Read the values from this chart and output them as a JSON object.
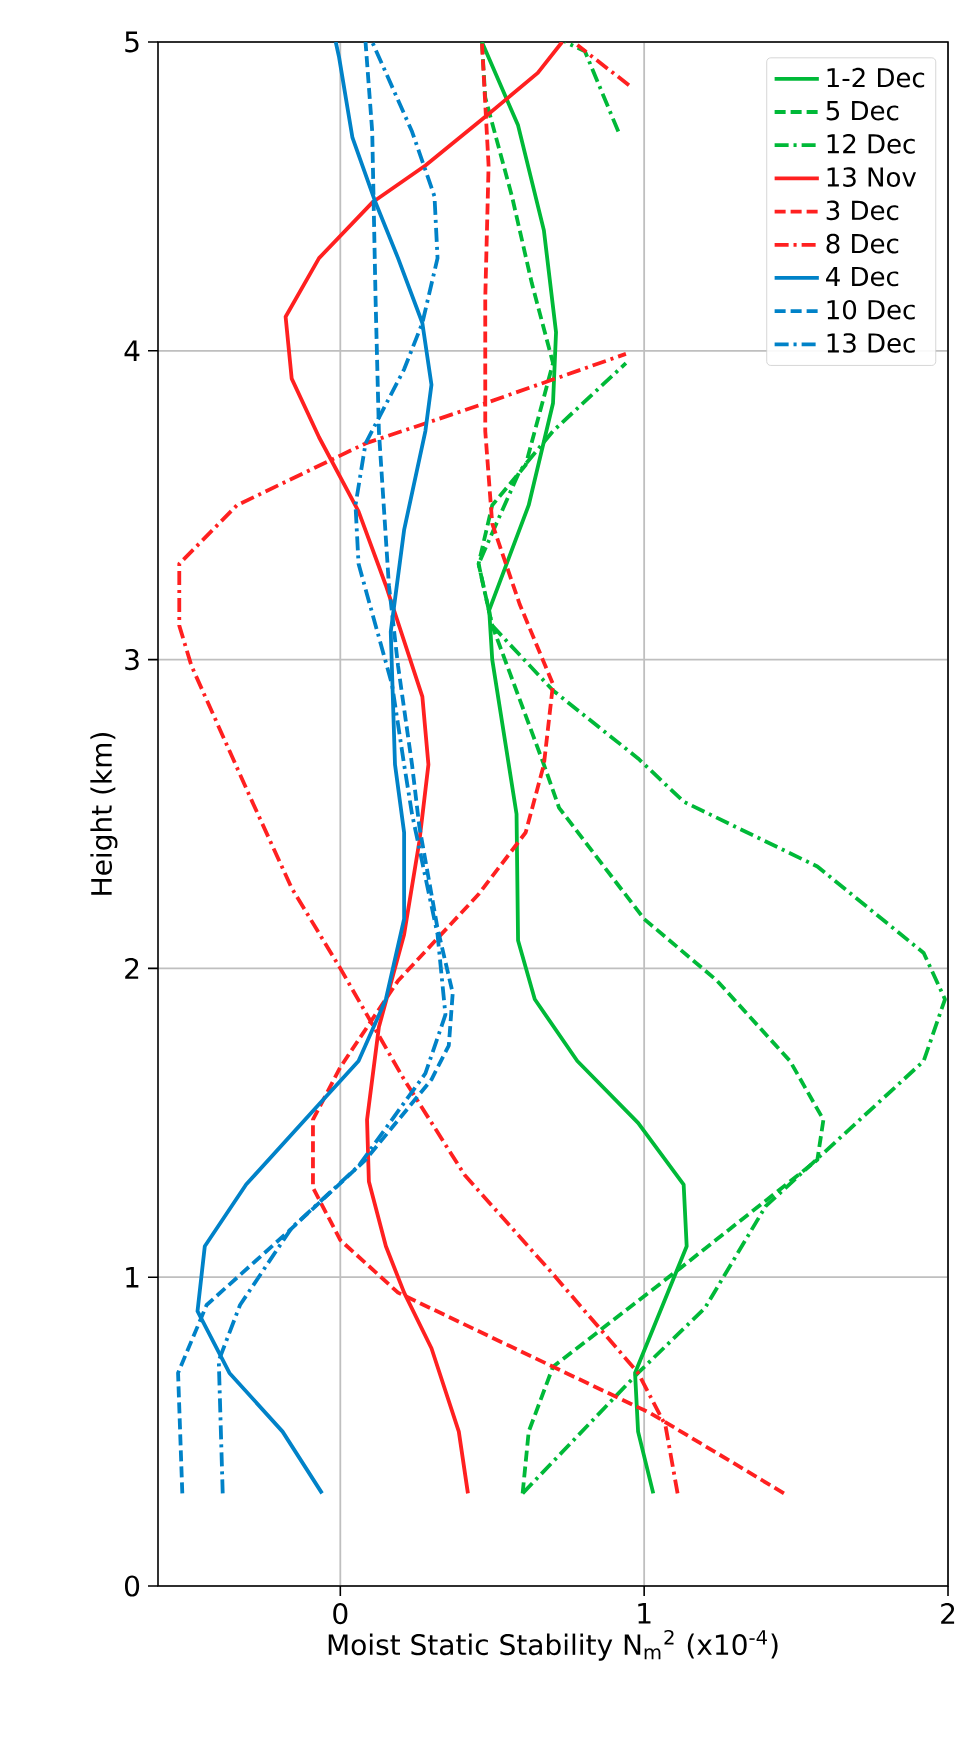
{
  "chart_data": {
    "type": "line",
    "xlabel": "Moist Static Stability N$_{m}$$^{2}$ (x10$^{-4}$)",
    "ylabel": "Height (km)",
    "xlim": [
      -0.6,
      2
    ],
    "ylim": [
      0,
      5
    ],
    "xticks": [
      0,
      1,
      2
    ],
    "yticks": [
      0,
      1,
      2,
      3,
      4,
      5
    ],
    "grid": true,
    "legend": "top right",
    "series": [
      {
        "name": "1-2 Dec",
        "color": "#00b938",
        "line_style": "solid",
        "x": [
          1.03,
          0.98,
          0.97,
          1.14,
          1.13,
          0.98,
          0.78,
          0.64,
          0.585,
          0.58,
          0.5,
          0.49,
          0.62,
          0.7,
          0.71,
          0.67,
          0.585,
          0.466
        ],
        "values": [
          0.3,
          0.5,
          0.69,
          1.1,
          1.3,
          1.5,
          1.7,
          1.9,
          2.09,
          2.5,
          3.0,
          3.16,
          3.5,
          3.83,
          4.06,
          4.39,
          4.73,
          5.0
        ]
      },
      {
        "name": "5 Dec",
        "color": "#00b938",
        "line_style": "dashed",
        "x": [
          0.6,
          0.62,
          0.7,
          1.12,
          1.57,
          1.59,
          1.48,
          1.24,
          1.0,
          0.72,
          0.67,
          0.5,
          0.455,
          0.5,
          0.61,
          0.7,
          0.63,
          0.565,
          0.477,
          0.466
        ],
        "values": [
          0.3,
          0.5,
          0.71,
          1.03,
          1.38,
          1.51,
          1.7,
          1.96,
          2.16,
          2.52,
          2.66,
          3.11,
          3.31,
          3.5,
          3.63,
          3.96,
          4.22,
          4.5,
          4.82,
          5.0
        ]
      },
      {
        "name": "12 Dec",
        "color": "#00b938",
        "line_style": "dashdot",
        "x": [
          0.6,
          0.98,
          1.2,
          1.4,
          1.92,
          1.99,
          1.92,
          1.57,
          1.13,
          0.98,
          0.7,
          0.5,
          0.455,
          0.59,
          0.7,
          0.94,
          null,
          0.915,
          0.805,
          0.74
        ],
        "values": [
          0.3,
          0.69,
          0.9,
          1.23,
          1.7,
          1.9,
          2.05,
          2.33,
          2.54,
          2.68,
          2.9,
          3.11,
          3.31,
          3.61,
          3.74,
          3.96,
          null,
          4.71,
          4.97,
          5.0
        ]
      },
      {
        "name": "13 Nov",
        "color": "#ff2020",
        "line_style": "solid",
        "x": [
          0.42,
          0.39,
          0.3,
          0.21,
          0.15,
          0.094,
          0.088,
          0.127,
          0.21,
          0.26,
          0.29,
          0.27,
          0.15,
          0.06,
          -0.07,
          -0.16,
          -0.18,
          -0.07,
          0.105,
          0.28,
          0.48,
          0.65,
          0.73
        ],
        "values": [
          0.3,
          0.5,
          0.77,
          0.95,
          1.1,
          1.31,
          1.51,
          1.81,
          2.11,
          2.41,
          2.66,
          2.88,
          3.24,
          3.48,
          3.72,
          3.91,
          4.11,
          4.3,
          4.48,
          4.6,
          4.76,
          4.9,
          5.0
        ]
      },
      {
        "name": "3 Dec",
        "color": "#ff2020",
        "line_style": "dashed",
        "x": [
          1.46,
          1.02,
          0.7,
          0.19,
          0.0,
          -0.09,
          -0.09,
          0.0,
          0.19,
          0.455,
          0.61,
          0.67,
          0.7,
          0.59,
          0.5,
          0.477,
          0.477,
          0.488,
          0.466
        ],
        "values": [
          0.3,
          0.56,
          0.71,
          0.95,
          1.12,
          1.29,
          1.51,
          1.68,
          1.96,
          2.24,
          2.44,
          2.66,
          2.92,
          3.18,
          3.44,
          3.74,
          4.17,
          4.6,
          5.0
        ]
      },
      {
        "name": "8 Dec",
        "color": "#ff2020",
        "line_style": "dashdot",
        "x": [
          1.11,
          1.07,
          0.98,
          0.7,
          0.41,
          0.21,
          0.0,
          -0.16,
          -0.29,
          -0.49,
          -0.53,
          -0.53,
          -0.34,
          0.083,
          0.477,
          0.94,
          null,
          0.95,
          0.78
        ],
        "values": [
          0.3,
          0.52,
          0.69,
          1.01,
          1.33,
          1.64,
          2.0,
          2.26,
          2.54,
          2.98,
          3.11,
          3.31,
          3.5,
          3.7,
          3.83,
          3.99,
          null,
          4.86,
          4.99
        ]
      },
      {
        "name": "4 Dec",
        "color": "#0082c8",
        "line_style": "solid",
        "x": [
          -0.06,
          -0.19,
          -0.365,
          -0.47,
          -0.446,
          -0.31,
          -0.07,
          0.06,
          0.15,
          0.21,
          0.21,
          0.18,
          0.166,
          0.21,
          0.28,
          0.3,
          0.27,
          0.19,
          0.116,
          0.04,
          -0.004,
          -0.015
        ],
        "values": [
          0.3,
          0.5,
          0.69,
          0.89,
          1.1,
          1.3,
          1.56,
          1.7,
          1.9,
          2.16,
          2.44,
          2.66,
          3.09,
          3.42,
          3.74,
          3.89,
          4.09,
          4.3,
          4.48,
          4.69,
          4.95,
          5.0
        ]
      },
      {
        "name": "10 Dec",
        "color": "#0082c8",
        "line_style": "dashed",
        "x": [
          -0.52,
          -0.534,
          -0.44,
          -0.18,
          0.083,
          0.3,
          0.357,
          0.37,
          0.32,
          0.26,
          0.236,
          0.19,
          0.16,
          0.127,
          0.116,
          0.105,
          0.083
        ],
        "values": [
          0.3,
          0.69,
          0.91,
          1.14,
          1.38,
          1.64,
          1.75,
          1.92,
          2.13,
          2.46,
          2.66,
          2.98,
          3.24,
          3.74,
          4.17,
          4.71,
          5.0
        ]
      },
      {
        "name": "13 Dec",
        "color": "#0082c8",
        "line_style": "dashdot",
        "x": [
          -0.387,
          -0.4,
          -0.33,
          -0.16,
          0.06,
          0.28,
          0.346,
          0.32,
          0.236,
          0.21,
          0.17,
          0.06,
          0.05,
          0.083,
          0.21,
          0.27,
          0.32,
          0.31,
          0.236,
          0.105
        ],
        "values": [
          0.3,
          0.73,
          0.91,
          1.16,
          1.36,
          1.66,
          1.85,
          2.11,
          2.5,
          2.66,
          2.92,
          3.31,
          3.5,
          3.7,
          3.94,
          4.09,
          4.3,
          4.5,
          4.71,
          5.0
        ]
      }
    ]
  }
}
